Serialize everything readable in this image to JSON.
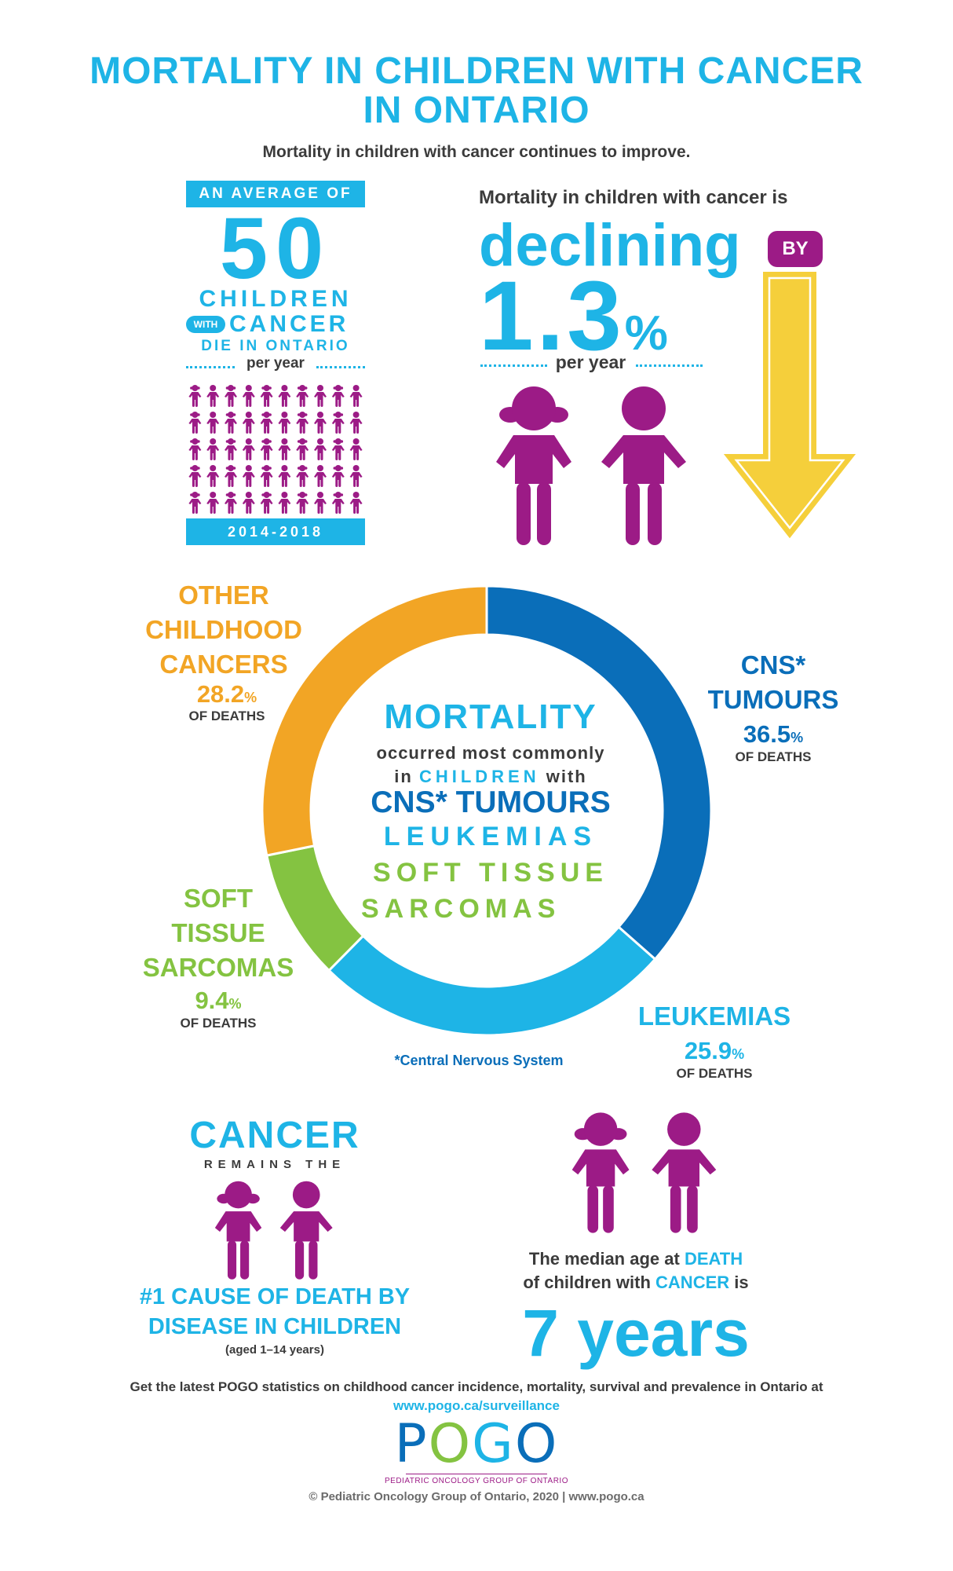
{
  "title": {
    "line1": "MORTALITY IN CHILDREN WITH CANCER",
    "line2": "IN ONTARIO"
  },
  "subtitle": "Mortality in children with cancer continues to improve.",
  "average_block": {
    "banner": "AN AVERAGE OF",
    "number": "50",
    "children_word": "CHILDREN",
    "with_word": "WITH",
    "cancer_word": "CANCER",
    "die_word": "DIE IN ONTARIO",
    "per_year": "per year",
    "years": "2014-2018",
    "icon_count": 50
  },
  "declining_block": {
    "intro": "Mortality in children with cancer is",
    "word": "declining",
    "by": "BY",
    "percent_number": "1.3",
    "percent_sign": "%",
    "per_year": "per year"
  },
  "colors": {
    "cyan": "#1eb4e6",
    "blue": "#0a6eb9",
    "purple": "#9c1b86",
    "green": "#84c341",
    "orange": "#f2a525",
    "yellow": "#f5cf3b"
  },
  "icons": [
    "girl-icon",
    "boy-icon",
    "down-arrow-icon"
  ],
  "chart_data": {
    "type": "pie",
    "categories": [
      "CNS* TUMOURS",
      "LEUKEMIAS",
      "SOFT TISSUE SARCOMAS",
      "OTHER CHILDHOOD CANCERS"
    ],
    "values": [
      36.5,
      25.9,
      9.4,
      28.2
    ],
    "unit": "% OF DEATHS",
    "colors": [
      "#0a6eb9",
      "#1eb4e6",
      "#84c341",
      "#f2a525"
    ]
  },
  "segments": {
    "cns": {
      "l1": "CNS*",
      "l2": "TUMOURS",
      "val": "36.5",
      "pct": "%",
      "of": "OF DEATHS"
    },
    "leuk": {
      "l1": "LEUKEMIAS",
      "val": "25.9",
      "pct": "%",
      "of": "OF DEATHS"
    },
    "sts": {
      "l1": "SOFT",
      "l2": "TISSUE",
      "l3": "SARCOMAS",
      "val": "9.4",
      "pct": "%",
      "of": "OF DEATHS"
    },
    "other": {
      "l1": "OTHER",
      "l2": "CHILDHOOD",
      "l3": "CANCERS",
      "val": "28.2",
      "pct": "%",
      "of": "OF DEATHS"
    }
  },
  "donut_center": {
    "head": "MORTALITY",
    "l1": "occurred most commonly",
    "l2_pre": "in",
    "l2_hl": "CHILDREN",
    "l2_post": "with",
    "l3": "CNS* TUMOURS",
    "l4": "LEUKEMIAS",
    "l5": "SOFT TISSUE",
    "l6": "SARCOMAS"
  },
  "footnote": "*Central Nervous System",
  "cause_block": {
    "cancer": "CANCER",
    "remains": "REMAINS THE",
    "cause_l1": "#1 CAUSE OF DEATH BY",
    "cause_l2": "DISEASE IN CHILDREN",
    "aged": "(aged 1–14 years)"
  },
  "median_block": {
    "l1_pre": "The median age at",
    "l1_hl": "DEATH",
    "l2_pre": "of children with",
    "l2_hl": "CANCER",
    "l2_post": "is",
    "value": "7 years"
  },
  "footer": {
    "text": "Get the latest POGO statistics on childhood cancer incidence, mortality, survival and prevalence in Ontario at",
    "link": "www.pogo.ca/surveillance",
    "logo_p": "P",
    "logo_o1": "O",
    "logo_g": "G",
    "logo_o2": "O",
    "logo_sub": "PEDIATRIC ONCOLOGY GROUP OF ONTARIO",
    "copyright": "© Pediatric Oncology Group of Ontario, 2020 | www.pogo.ca"
  }
}
